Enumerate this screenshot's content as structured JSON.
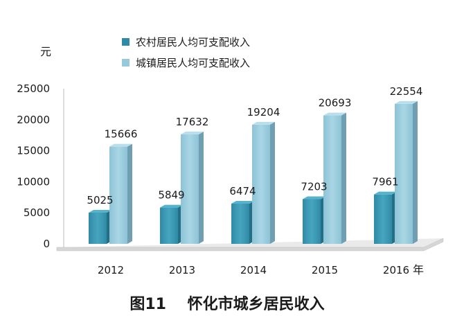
{
  "chart_data": {
    "type": "bar",
    "title": "图11    怀化市城乡居民收入",
    "ylabel": "元",
    "xlabel": "年",
    "ylim": [
      0,
      25000
    ],
    "yticks": [
      "0",
      "5000",
      "10000",
      "15000",
      "20000",
      "25000"
    ],
    "categories": [
      "2012",
      "2013",
      "2014",
      "2015",
      "2016"
    ],
    "series": [
      {
        "name": "农村居民人均可支配收入",
        "values": [
          5025,
          5849,
          6474,
          7203,
          7961
        ],
        "color": "#3a95b0"
      },
      {
        "name": "城镇居民人均可支配收入",
        "values": [
          15666,
          17632,
          19204,
          20693,
          22554
        ],
        "color": "#97c9da"
      }
    ],
    "legend": "top-center",
    "grid": false
  }
}
